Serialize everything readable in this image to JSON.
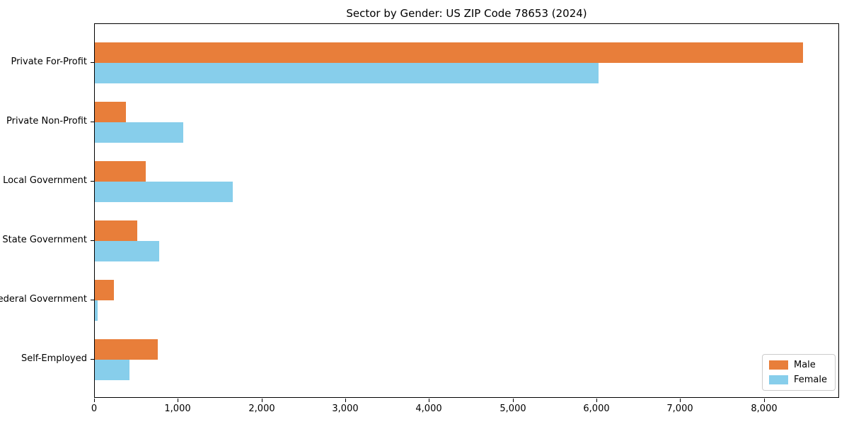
{
  "chart_data": {
    "type": "bar",
    "orientation": "horizontal",
    "title": "Sector by Gender: US ZIP Code 78653 (2024)",
    "categories": [
      "Private For-Profit",
      "Private Non-Profit",
      "Local Government",
      "State Government",
      "Federal Government",
      "Self-Employed"
    ],
    "series": [
      {
        "name": "Male",
        "color": "#e87e3a",
        "values": [
          8460,
          370,
          610,
          510,
          230,
          750
        ]
      },
      {
        "name": "Female",
        "color": "#87ceeb",
        "values": [
          6020,
          1060,
          1650,
          770,
          30,
          410
        ]
      }
    ],
    "xlabel": "",
    "ylabel": "",
    "xlim": [
      0,
      8900
    ],
    "xticks": [
      0,
      1000,
      2000,
      3000,
      4000,
      5000,
      6000,
      7000,
      8000
    ],
    "xtick_labels": [
      "0",
      "1,000",
      "2,000",
      "3,000",
      "4,000",
      "5,000",
      "6,000",
      "7,000",
      "8,000"
    ],
    "grid": false,
    "legend": {
      "position": "lower right",
      "entries": [
        "Male",
        "Female"
      ]
    },
    "colors": {
      "male": "#e87e3a",
      "female": "#87ceeb",
      "spine": "#000000",
      "background": "#ffffff",
      "legend_border": "#cccccc"
    }
  }
}
